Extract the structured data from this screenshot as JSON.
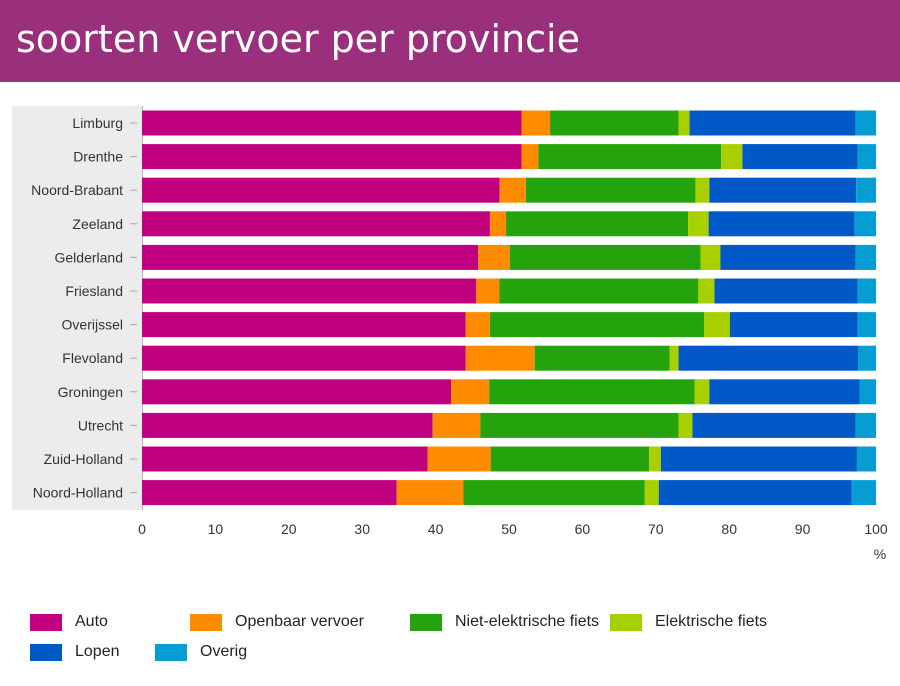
{
  "header": {
    "title": "soorten vervoer per provincie"
  },
  "chart_data": {
    "type": "bar",
    "orientation": "horizontal",
    "stacked": true,
    "title": "soorten vervoer per provincie",
    "xlabel": "%",
    "ylabel": "",
    "xlim": [
      0,
      100
    ],
    "x_ticks": [
      "0",
      "10",
      "20",
      "30",
      "40",
      "50",
      "60",
      "70",
      "80",
      "90",
      "100"
    ],
    "x_unit_label": "%",
    "categories": [
      "Limburg",
      "Drenthe",
      "Noord-Brabant",
      "Zeeland",
      "Gelderland",
      "Friesland",
      "Overijssel",
      "Flevoland",
      "Groningen",
      "Utrecht",
      "Zuid-Holland",
      "Noord-Holland"
    ],
    "series": [
      {
        "name": "Auto",
        "color": "#c0007f",
        "values": [
          51.7,
          51.7,
          48.7,
          47.4,
          45.8,
          45.5,
          44.1,
          44.1,
          42.1,
          39.6,
          38.9,
          34.7
        ]
      },
      {
        "name": "Openbaar vervoer",
        "color": "#ff8c00",
        "values": [
          3.9,
          2.3,
          3.6,
          2.2,
          4.3,
          3.2,
          3.3,
          9.4,
          5.2,
          6.5,
          8.6,
          9.1
        ]
      },
      {
        "name": "Niet-elektrische fiets",
        "color": "#24a30c",
        "values": [
          17.5,
          24.9,
          23.1,
          24.8,
          26.0,
          27.1,
          29.2,
          18.4,
          28.0,
          27.0,
          21.6,
          24.7
        ]
      },
      {
        "name": "Elektrische fiets",
        "color": "#a8cf00",
        "values": [
          1.5,
          2.9,
          1.9,
          2.8,
          2.7,
          2.2,
          3.5,
          1.2,
          2.0,
          1.9,
          1.6,
          1.9
        ]
      },
      {
        "name": "Lopen",
        "color": "#0059c6",
        "values": [
          22.6,
          15.7,
          20.0,
          19.9,
          18.4,
          19.5,
          17.4,
          24.5,
          20.5,
          22.2,
          26.7,
          26.3
        ]
      },
      {
        "name": "Overig",
        "color": "#069dd3",
        "values": [
          2.8,
          2.5,
          2.7,
          2.9,
          2.8,
          2.5,
          2.5,
          2.4,
          2.2,
          2.8,
          2.6,
          3.3
        ]
      }
    ],
    "legend_position": "bottom",
    "grid": false
  }
}
